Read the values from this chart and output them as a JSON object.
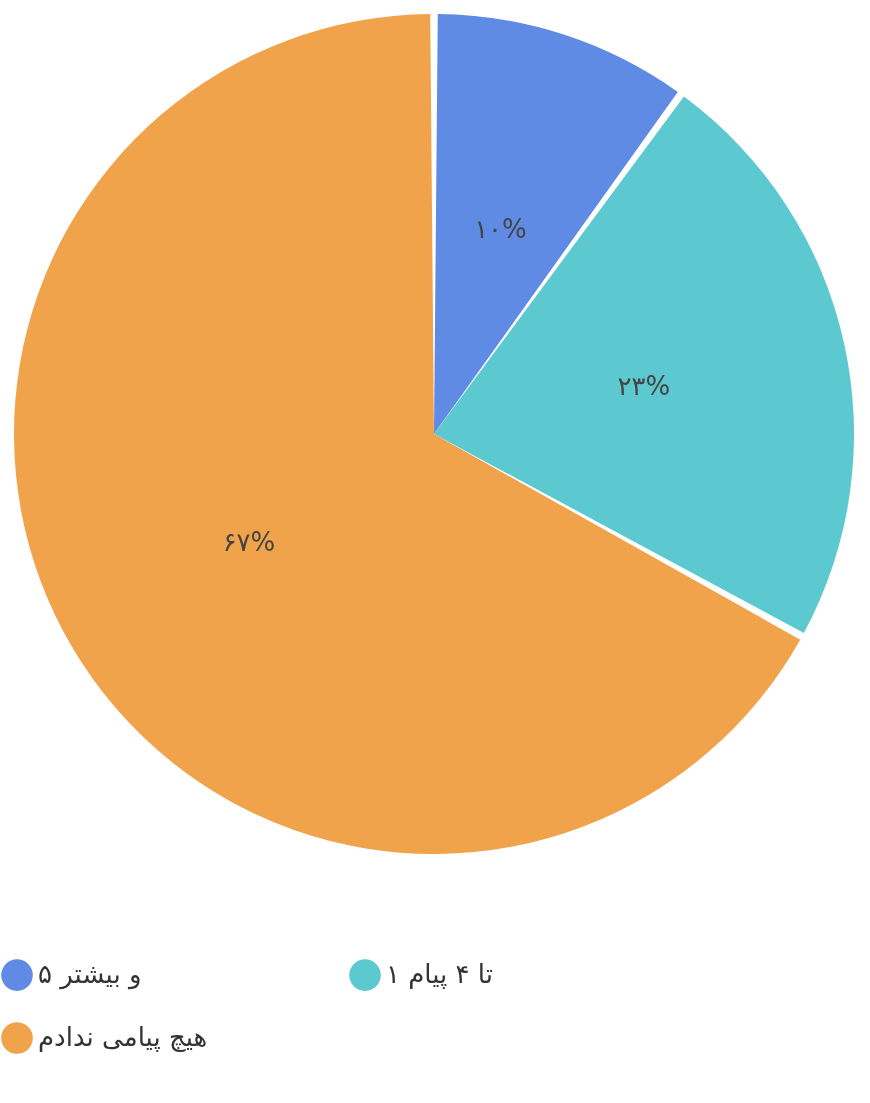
{
  "chart_data": {
    "type": "pie",
    "categories": [
      "۵ و بیشتر",
      "۱ تا ۴ پیام",
      "هیچ پیامی ندادم"
    ],
    "values": [
      10,
      23,
      67
    ],
    "colors": [
      "#5f8be4",
      "#5cc8cf",
      "#f0a34a"
    ],
    "value_labels": [
      "۱۰%",
      "۲۳%",
      "۶۷%"
    ],
    "legend": "bottom"
  }
}
